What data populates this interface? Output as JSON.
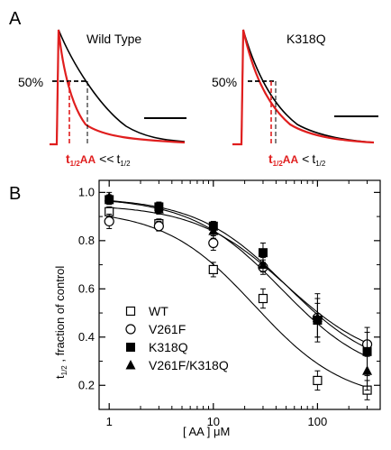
{
  "colors": {
    "trace_black": "#000000",
    "trace_red": "#e01e1e",
    "background": "#ffffff"
  },
  "panel_a": {
    "letter": "A",
    "left": {
      "title": "Wild Type",
      "pct_label": "50%",
      "annot_main": "t",
      "annot_sub": "1/2",
      "annot_aa": "AA",
      "annot_op": "<<",
      "annot_rhs_main": "t",
      "annot_rhs_sub": "1/2"
    },
    "right": {
      "title": "K318Q",
      "pct_label": "50%",
      "annot_main": "t",
      "annot_sub": "1/2",
      "annot_aa": "AA",
      "annot_op": "<",
      "annot_rhs_main": "t",
      "annot_rhs_sub": "1/2"
    }
  },
  "panel_b": {
    "letter": "B"
  },
  "chart_data": {
    "type": "scatter",
    "xscale": "log",
    "xlim": [
      0.8,
      400
    ],
    "ylim": [
      0.1,
      1.05
    ],
    "xlabel": "[ AA ] μM",
    "ylabel_main": "t",
    "ylabel_sub": "1/2",
    "ylabel_rest": " , fraction of control",
    "xticks": [
      1,
      10,
      100
    ],
    "xtick_labels": [
      "1",
      "10",
      "100"
    ],
    "yticks": [
      0.2,
      0.4,
      0.6,
      0.8,
      1.0
    ],
    "ytick_labels": [
      "0.2",
      "0.4",
      "0.6",
      "0.8",
      "1.0"
    ],
    "legend_position": "lower-left",
    "x": [
      1,
      3,
      10,
      30,
      100,
      300
    ],
    "series": [
      {
        "name": "WT",
        "marker": "open-square",
        "values": [
          0.92,
          0.87,
          0.68,
          0.56,
          0.22,
          0.18
        ],
        "errors": [
          0.02,
          0.02,
          0.03,
          0.04,
          0.04,
          0.04
        ],
        "fit": {
          "top": 0.93,
          "bottom": 0.13,
          "ic50": 25,
          "hill": 1.0
        }
      },
      {
        "name": "V261F",
        "marker": "open-circle",
        "values": [
          0.88,
          0.86,
          0.79,
          0.69,
          0.48,
          0.37
        ],
        "errors": [
          0.03,
          0.02,
          0.03,
          0.03,
          0.1,
          0.05
        ],
        "fit": {
          "top": 0.95,
          "bottom": 0.28,
          "ic50": 50,
          "hill": 1.0
        }
      },
      {
        "name": "K318Q",
        "marker": "filled-square",
        "values": [
          0.97,
          0.94,
          0.86,
          0.75,
          0.47,
          0.34
        ],
        "errors": [
          0.02,
          0.02,
          0.02,
          0.04,
          0.07,
          0.1
        ],
        "fit": {
          "top": 0.98,
          "bottom": 0.25,
          "ic50": 50,
          "hill": 1.0
        }
      },
      {
        "name": "V261F/K318Q",
        "marker": "filled-triangle",
        "values": [
          0.98,
          0.93,
          0.84,
          0.7,
          0.48,
          0.26
        ],
        "errors": [
          0.02,
          0.02,
          0.03,
          0.03,
          0.08,
          0.08
        ],
        "fit": {
          "top": 0.98,
          "bottom": 0.22,
          "ic50": 45,
          "hill": 1.0
        }
      }
    ]
  }
}
